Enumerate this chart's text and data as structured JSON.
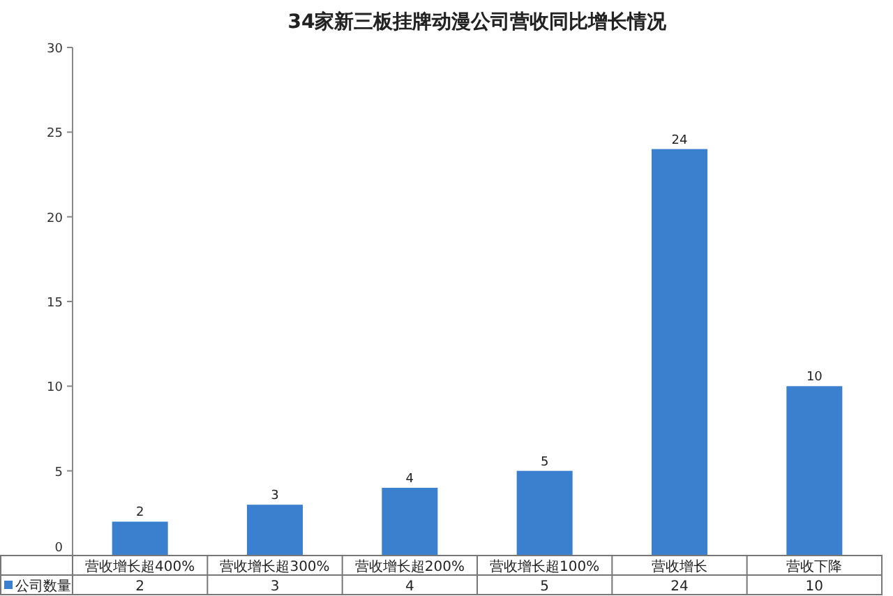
{
  "chart_data": {
    "type": "bar",
    "title": "34家新三板挂牌动漫公司营收同比增长情况",
    "categories": [
      "营收增长超400%",
      "营收增长超300%",
      "营收增长超200%",
      "营收增长超100%",
      "营收增长",
      "营收下降"
    ],
    "series": [
      {
        "name": "公司数量",
        "color": "#3a80cf",
        "values": [
          2,
          3,
          4,
          5,
          24,
          10
        ],
        "value_labels": [
          "2",
          "3",
          "4",
          "5",
          "24",
          "10"
        ]
      }
    ],
    "ylim": [
      0,
      30
    ],
    "yticks": [
      0,
      5,
      10,
      15,
      20,
      25,
      30
    ],
    "annotations": [
      "2",
      "3",
      "4",
      "5",
      "24",
      "10"
    ],
    "grid": false,
    "legend": "bottom left"
  }
}
